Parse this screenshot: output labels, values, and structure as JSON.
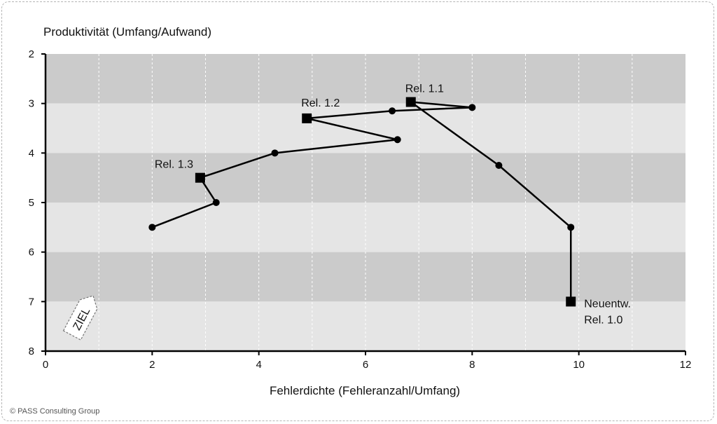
{
  "chart_data": {
    "type": "line",
    "ylabel": "Produktivität (Umfang/Aufwand)",
    "xlabel": "Fehlerdichte (Fehleranzahl/Umfang)",
    "xlim": [
      0,
      12
    ],
    "ylim": [
      2,
      8
    ],
    "y_axis_inverted": true,
    "x_ticks": [
      0,
      2,
      4,
      6,
      8,
      10,
      12
    ],
    "y_ticks": [
      2,
      3,
      4,
      5,
      6,
      7,
      8
    ],
    "grid": "vertical dashed lines at every 1 unit",
    "background_bands": [
      {
        "from": 2,
        "to": 3,
        "color": "#cbcbcb"
      },
      {
        "from": 3,
        "to": 4,
        "color": "#e5e5e5"
      },
      {
        "from": 4,
        "to": 5,
        "color": "#cbcbcb"
      },
      {
        "from": 5,
        "to": 6,
        "color": "#e5e5e5"
      },
      {
        "from": 6,
        "to": 7,
        "color": "#cbcbcb"
      },
      {
        "from": 7,
        "to": 8,
        "color": "#e5e5e5"
      }
    ],
    "series": [
      {
        "color": "#000000",
        "points": [
          {
            "x": 9.85,
            "y": 7.0,
            "marker": "square"
          },
          {
            "x": 9.85,
            "y": 5.5,
            "marker": "circle"
          },
          {
            "x": 8.5,
            "y": 4.25,
            "marker": "circle"
          },
          {
            "x": 6.85,
            "y": 2.97,
            "marker": "square"
          },
          {
            "x": 8.0,
            "y": 3.08,
            "marker": "circle"
          },
          {
            "x": 6.5,
            "y": 3.15,
            "marker": "circle"
          },
          {
            "x": 4.9,
            "y": 3.3,
            "marker": "square"
          },
          {
            "x": 6.6,
            "y": 3.73,
            "marker": "circle"
          },
          {
            "x": 4.3,
            "y": 4.0,
            "marker": "circle"
          },
          {
            "x": 2.9,
            "y": 4.5,
            "marker": "square"
          },
          {
            "x": 3.2,
            "y": 5.0,
            "marker": "circle"
          },
          {
            "x": 2.0,
            "y": 5.5,
            "marker": "circle"
          }
        ]
      }
    ],
    "annotations": [
      {
        "text": "Neuentw.",
        "at_x": 9.85,
        "at_y": 7.0
      },
      {
        "text": "Rel. 1.0",
        "at_x": 9.85,
        "at_y": 7.0
      },
      {
        "text": "Rel. 1.1",
        "at_x": 6.85,
        "at_y": 2.97
      },
      {
        "text": "Rel. 1.2",
        "at_x": 4.9,
        "at_y": 3.3
      },
      {
        "text": "Rel. 1.3",
        "at_x": 2.9,
        "at_y": 4.5
      }
    ],
    "target_tag": "ZIEL"
  },
  "copyright": "© PASS Consulting Group"
}
